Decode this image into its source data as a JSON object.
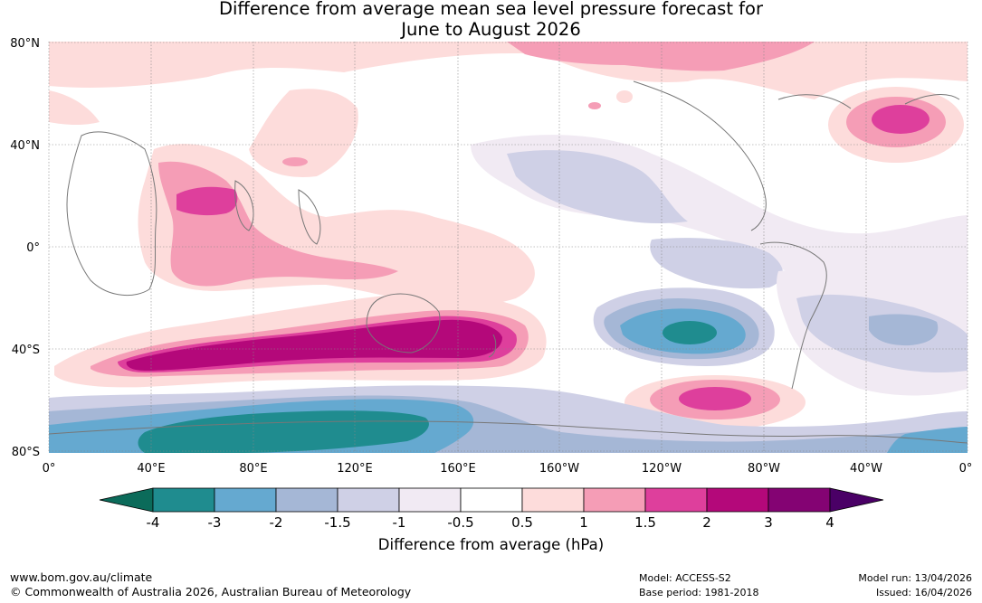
{
  "title": {
    "line1": "Difference from average mean sea level pressure forecast for",
    "line2": "June to August 2026"
  },
  "map": {
    "lat_labels": [
      "80°N",
      "40°N",
      "0°",
      "40°S",
      "80°S"
    ],
    "lon_labels": [
      "0°",
      "40°E",
      "80°E",
      "120°E",
      "160°E",
      "160°W",
      "120°W",
      "80°W",
      "40°W",
      "0°"
    ]
  },
  "colorbar": {
    "ticks": [
      "-4",
      "-3",
      "-2",
      "-1.5",
      "-1",
      "-0.5",
      "0.5",
      "1",
      "1.5",
      "2",
      "3",
      "4"
    ],
    "colors": {
      "under": "#0b6b5a",
      "bins": [
        "#1f8c8f",
        "#65a9d0",
        "#a5b7d6",
        "#cfd0e6",
        "#f1eaf3",
        "#ffffff",
        "#fddcdb",
        "#f59db6",
        "#de3f9c",
        "#b4087a",
        "#840373"
      ],
      "over": "#4a0066"
    },
    "title": "Difference from average (hPa)"
  },
  "footer": {
    "website": "www.bom.gov.au/climate",
    "copyright": "© Commonwealth of Australia 2026, Australian Bureau of Meteorology",
    "model": "Model: ACCESS-S2",
    "base_period": "Base period: 1981-2018",
    "model_run": "Model run: 13/04/2026",
    "issued": "Issued: 16/04/2026"
  }
}
